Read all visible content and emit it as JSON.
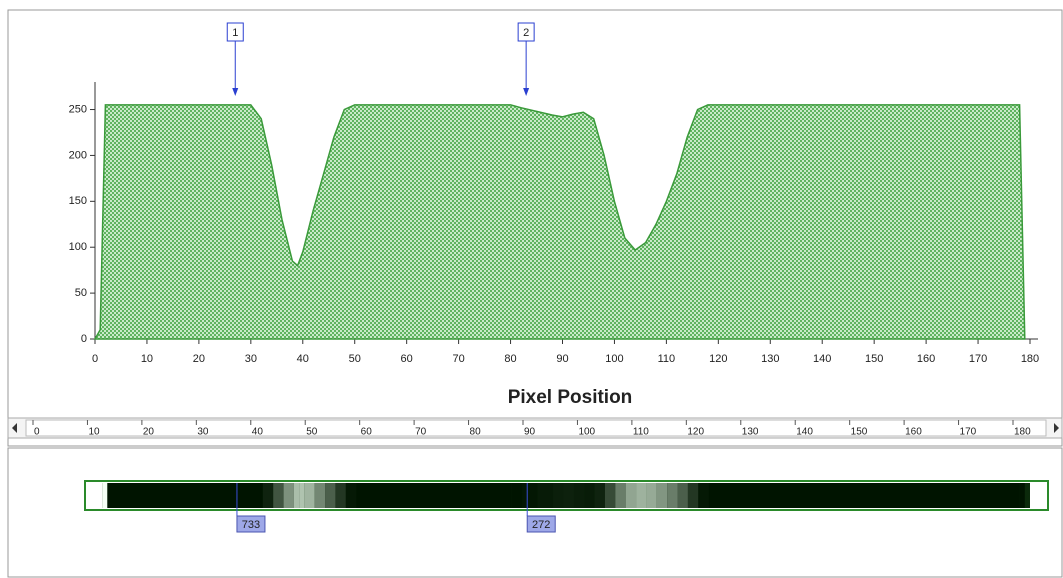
{
  "chart_data": {
    "type": "area",
    "x_label": "Pixel Position",
    "x": [
      0,
      1,
      2,
      30,
      32,
      34,
      36,
      38,
      39,
      40,
      42,
      44,
      46,
      48,
      50,
      80,
      82,
      85,
      88,
      90,
      92,
      94,
      96,
      98,
      100,
      102,
      104,
      106,
      108,
      110,
      112,
      114,
      116,
      118,
      178,
      179
    ],
    "values": [
      0,
      10,
      255,
      255,
      240,
      190,
      130,
      85,
      80,
      95,
      140,
      180,
      220,
      250,
      255,
      255,
      252,
      248,
      244,
      242,
      245,
      247,
      240,
      200,
      150,
      110,
      97,
      105,
      125,
      150,
      180,
      220,
      250,
      255,
      255,
      0
    ],
    "color": "#3a9a3a",
    "xlim": [
      0,
      180
    ],
    "ylim": [
      0,
      280
    ],
    "xticks": [
      0,
      10,
      20,
      30,
      40,
      50,
      60,
      70,
      80,
      90,
      100,
      110,
      120,
      130,
      140,
      150,
      160,
      170,
      180
    ],
    "yticks": [
      0,
      50,
      100,
      150,
      200,
      250
    ],
    "markers": [
      {
        "label": "1",
        "x": 27,
        "readout": "733"
      },
      {
        "label": "2",
        "x": 83,
        "readout": "272"
      }
    ]
  },
  "ruler": {
    "xlim": [
      0,
      180
    ],
    "xticks": [
      0,
      10,
      20,
      30,
      40,
      50,
      60,
      70,
      80,
      90,
      100,
      110,
      120,
      130,
      140,
      150,
      160,
      170,
      180
    ]
  }
}
